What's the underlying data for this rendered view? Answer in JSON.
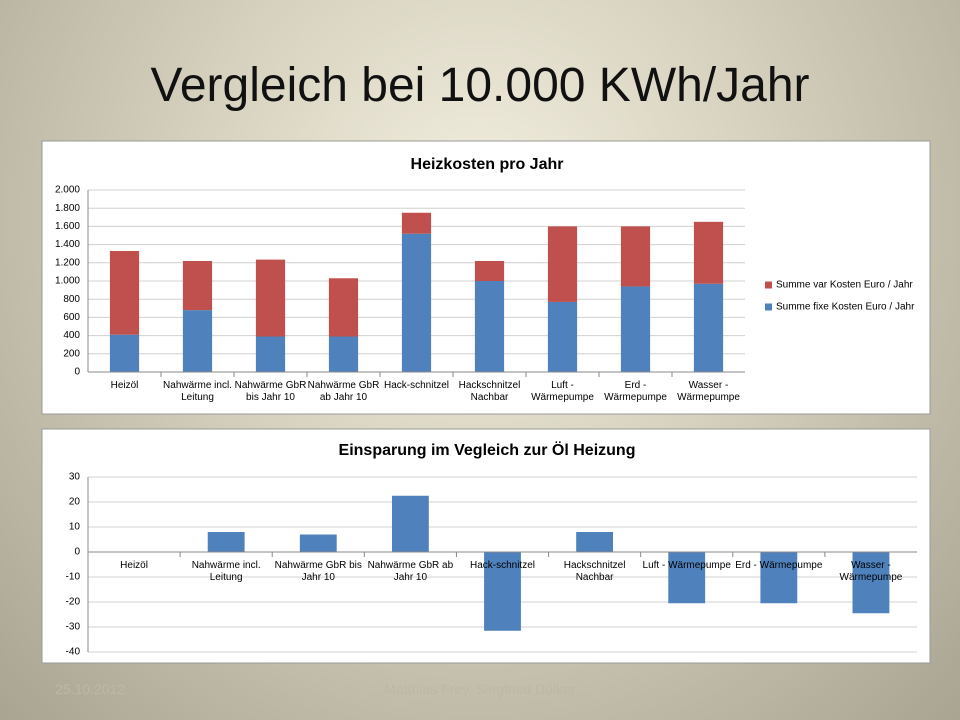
{
  "title": "Vergleich bei 10.000 KWh/Jahr",
  "footer_date": "25.10.2012",
  "footer_authors": "Matthias Frey, Siegfried Dölker",
  "chart_data": [
    {
      "type": "stacked_bar",
      "title": "Heizkosten pro Jahr",
      "categories": [
        "Heizöl",
        "Nahwärme incl. Leitung",
        "Nahwärme GbR bis Jahr 10",
        "Nahwärme GbR ab Jahr 10",
        "Hack-schnitzel",
        "Hackschnitzel Nachbar",
        "Luft - Wärmepumpe",
        "Erd - Wärmepumpe",
        "Wasser - Wärmepumpe"
      ],
      "series": [
        {
          "name": "Summe fixe Kosten Euro / Jahr",
          "color": "#4f81bd",
          "values": [
            410,
            680,
            390,
            390,
            1520,
            1000,
            770,
            940,
            970
          ]
        },
        {
          "name": "Summe var Kosten Euro / Jahr",
          "color": "#c0504d",
          "values": [
            920,
            540,
            845,
            640,
            230,
            220,
            830,
            660,
            680
          ]
        }
      ],
      "ylim": [
        0,
        2000
      ],
      "yticks": [
        0,
        200,
        400,
        600,
        800,
        {
          "value": 1000,
          "label": "1.000"
        },
        {
          "value": 1200,
          "label": "1.200"
        },
        {
          "value": 1400,
          "label": "1.400"
        },
        {
          "value": 1600,
          "label": "1.600"
        },
        {
          "value": 1800,
          "label": "1.800"
        },
        {
          "value": 2000,
          "label": "2.000"
        }
      ],
      "grid": true,
      "legend": "right"
    },
    {
      "type": "bar",
      "title": "Einsparung im Vegleich zur Öl Heizung",
      "categories": [
        "Heizöl",
        "Nahwärme incl. Leitung",
        "Nahwärme GbR bis Jahr 10",
        "Nahwärme GbR ab Jahr 10",
        "Hack-schnitzel",
        "Hackschnitzel Nachbar",
        "Luft - Wärmepumpe",
        "Erd - Wärmepumpe",
        "Wasser - Wärmepumpe"
      ],
      "values": [
        0,
        8,
        7,
        22.5,
        -31.5,
        8,
        -20.5,
        -20.5,
        -24.5
      ],
      "color": "#4f81bd",
      "ylim": [
        -40,
        30
      ],
      "yticks": [
        -40,
        -30,
        -20,
        -10,
        0,
        10,
        20,
        30
      ],
      "grid": true
    }
  ]
}
